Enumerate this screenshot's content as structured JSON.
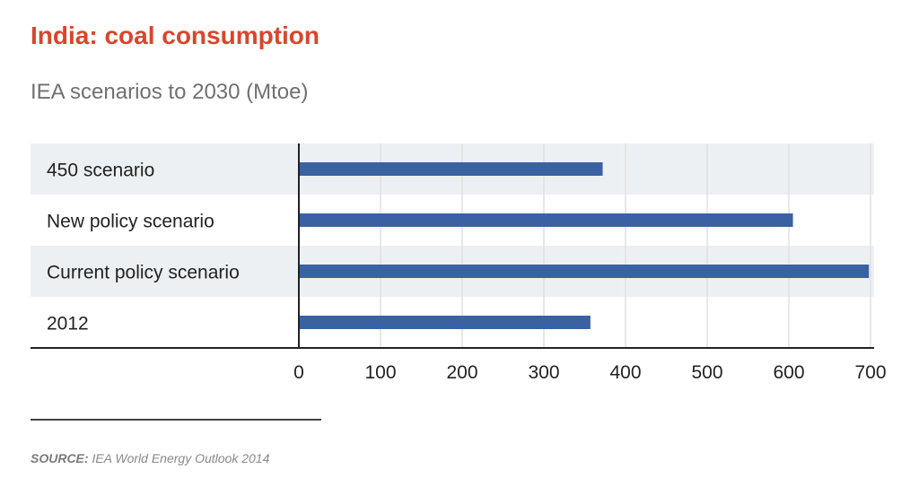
{
  "title": "India: coal consumption",
  "subtitle": "IEA scenarios to 2030 (Mtoe)",
  "source": {
    "label": "SOURCE:",
    "text": " IEA World Energy Outlook 2014"
  },
  "colors": {
    "title": "#d9462b",
    "bar": "#3a62a3",
    "band": "#edf0f2",
    "grid": "#e0e0e0"
  },
  "chart_data": {
    "type": "bar",
    "orientation": "horizontal",
    "categories": [
      "450 scenario",
      "New policy scenario",
      "Current policy scenario",
      "2012"
    ],
    "values": [
      372,
      605,
      698,
      357
    ],
    "xlim": [
      0,
      700
    ],
    "xticks": [
      "0",
      "100",
      "200",
      "300",
      "400",
      "500",
      "600",
      "700"
    ],
    "grid": true,
    "legend": "none"
  }
}
